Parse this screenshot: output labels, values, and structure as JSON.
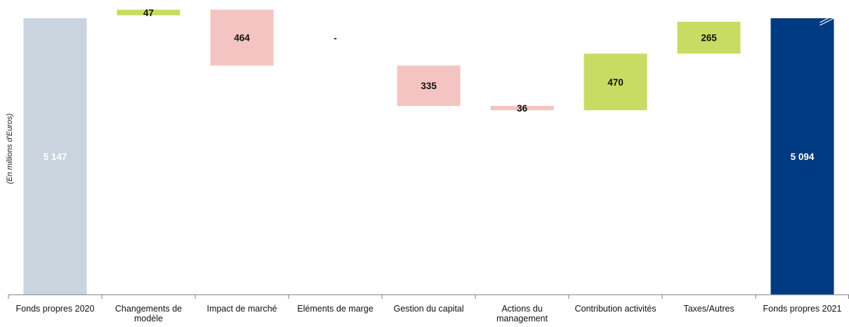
{
  "chart_data": {
    "type": "bar",
    "subtype": "waterfall",
    "ylabel": "(En millions d'Euros)",
    "categories": [
      [
        "Fonds propres 2020"
      ],
      [
        "Changements de",
        "modèle"
      ],
      [
        "Impact de marché"
      ],
      [
        "Eléments de marge"
      ],
      [
        "Gestion du capital"
      ],
      [
        "Actions du",
        "management"
      ],
      [
        "Contribution activités"
      ],
      [
        "Taxes/Autres"
      ],
      [
        "Fonds propres 2021"
      ]
    ],
    "steps": [
      {
        "kind": "total",
        "value": 5147,
        "label": "5 147"
      },
      {
        "kind": "increase",
        "value": 47,
        "label": "47"
      },
      {
        "kind": "decrease",
        "value": -464,
        "label": "464"
      },
      {
        "kind": "none",
        "value": 0,
        "label": "-"
      },
      {
        "kind": "decrease",
        "value": -335,
        "label": "335"
      },
      {
        "kind": "decrease",
        "value": -36,
        "label": "36"
      },
      {
        "kind": "increase",
        "value": 470,
        "label": "470"
      },
      {
        "kind": "increase",
        "value": 265,
        "label": "265"
      },
      {
        "kind": "total",
        "value": 5094,
        "label": "5 094"
      }
    ],
    "axis_break": true,
    "colors": {
      "total_start": "#c9d4de",
      "total_end": "#003a80",
      "increase": "#c8dc64",
      "decrease": "#f4c4c2",
      "axis": "#7f7f7f"
    }
  }
}
